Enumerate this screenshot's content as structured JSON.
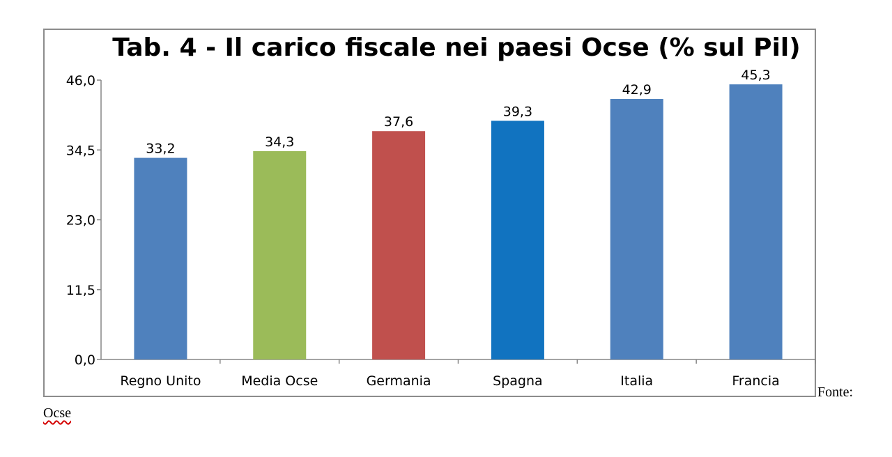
{
  "chart_data": {
    "type": "bar",
    "title": "Tab. 4 - Il carico fiscale nei paesi Ocse (% sul Pil)",
    "categories": [
      "Regno Unito",
      "Media Ocse",
      "Germania",
      "Spagna",
      "Italia",
      "Francia"
    ],
    "values": [
      33.2,
      34.3,
      37.6,
      39.3,
      42.9,
      45.3
    ],
    "value_labels": [
      "33,2",
      "34,3",
      "37,6",
      "39,3",
      "42,9",
      "45,3"
    ],
    "bar_colors": [
      "#4f81bd",
      "#9bbb59",
      "#c0504d",
      "#1173c0",
      "#4f81bd",
      "#4f81bd"
    ],
    "ylim": [
      0,
      46
    ],
    "yticks": [
      0,
      11.5,
      23,
      34.5,
      46
    ],
    "ytick_labels": [
      "0,0",
      "11,5",
      "23,0",
      "34,5",
      "46,0"
    ],
    "grid": false,
    "legend": "none"
  },
  "source": {
    "prefix": "Fonte:",
    "name": "Ocse"
  }
}
